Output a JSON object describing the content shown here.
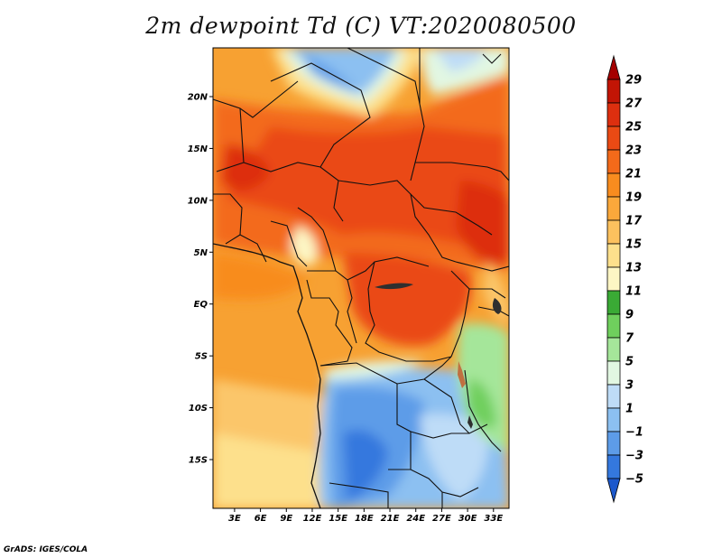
{
  "title": "2m dewpoint Td (C) VT:2020080500",
  "credit": "GrADS: IGES/COLA",
  "map": {
    "lon_ticks": [
      "3E",
      "6E",
      "9E",
      "12E",
      "15E",
      "18E",
      "21E",
      "24E",
      "27E",
      "30E",
      "33E"
    ],
    "lat_ticks": [
      "20N",
      "15N",
      "10N",
      "5N",
      "EQ",
      "5S",
      "10S",
      "15S"
    ],
    "lon_values": [
      3,
      6,
      9,
      12,
      15,
      18,
      21,
      24,
      27,
      30,
      33
    ],
    "lat_values": [
      20,
      15,
      10,
      5,
      0,
      -5,
      -10,
      -15
    ],
    "lon_range": [
      0.5,
      34.8
    ],
    "lat_range": [
      -19.7,
      24.7
    ]
  },
  "colorbar": {
    "labels": [
      "29",
      "27",
      "25",
      "23",
      "21",
      "19",
      "17",
      "15",
      "13",
      "11",
      "9",
      "7",
      "5",
      "3",
      "1",
      "−1",
      "−3",
      "−5"
    ],
    "colors": [
      "#a50000",
      "#c21505",
      "#dd2f0f",
      "#ea4a14",
      "#f36a1a",
      "#f88c1f",
      "#fba83b",
      "#fcc15e",
      "#fde08c",
      "#fdf6c4",
      "#3aaa35",
      "#6fcf5d",
      "#a5e69a",
      "#e2f7e2",
      "#bedcf7",
      "#8cc0f1",
      "#5d9ce8",
      "#3478de",
      "#1c58cc"
    ]
  }
}
